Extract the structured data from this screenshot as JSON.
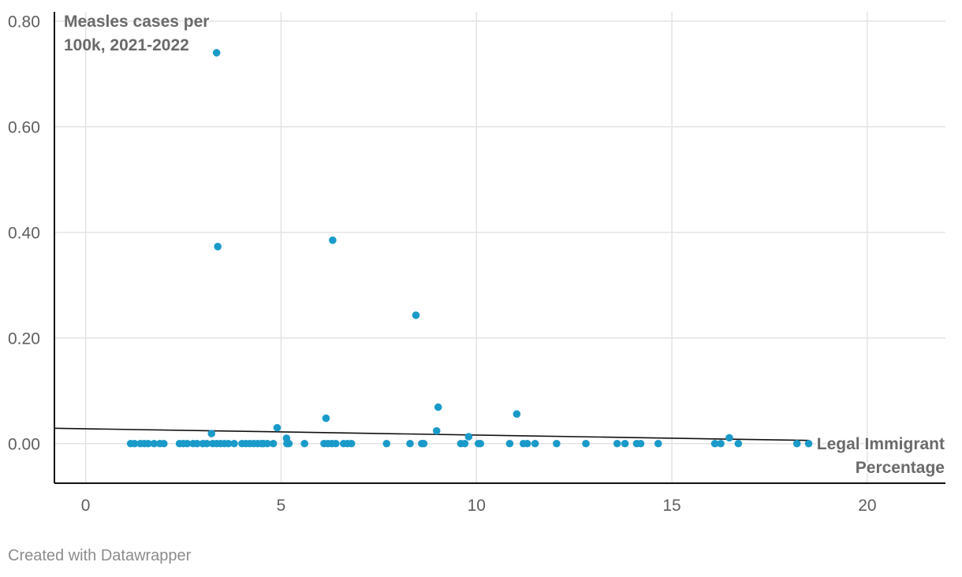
{
  "chart_data": {
    "type": "scatter",
    "ylabel_lines": [
      "Measles cases per",
      "100k, 2021-2022"
    ],
    "xlabel_lines": [
      "Legal Immigrant",
      "Percentage"
    ],
    "xlim": [
      -0.8,
      22
    ],
    "ylim": [
      -0.075,
      0.81
    ],
    "x_ticks": [
      0,
      5,
      10,
      15,
      20
    ],
    "x_tick_labels": [
      "0",
      "5",
      "10",
      "15",
      "20"
    ],
    "y_ticks": [
      0.0,
      0.2,
      0.4,
      0.6,
      0.8
    ],
    "y_tick_labels": [
      "0.00",
      "0.20",
      "0.40",
      "0.60",
      "0.80"
    ],
    "grid": true,
    "point_color": "#1a9ac9",
    "trendline": {
      "x": [
        -0.8,
        18.5
      ],
      "y": [
        0.029,
        0.006
      ],
      "color": "#111111"
    },
    "points": [
      {
        "x": 3.35,
        "y": 0.74
      },
      {
        "x": 3.38,
        "y": 0.373
      },
      {
        "x": 6.32,
        "y": 0.385
      },
      {
        "x": 8.45,
        "y": 0.243
      },
      {
        "x": 9.02,
        "y": 0.069
      },
      {
        "x": 11.03,
        "y": 0.056
      },
      {
        "x": 6.15,
        "y": 0.048
      },
      {
        "x": 4.9,
        "y": 0.03
      },
      {
        "x": 3.22,
        "y": 0.019
      },
      {
        "x": 8.98,
        "y": 0.024
      },
      {
        "x": 9.8,
        "y": 0.013
      },
      {
        "x": 5.14,
        "y": 0.01
      },
      {
        "x": 16.47,
        "y": 0.011
      },
      {
        "x": 1.15,
        "y": 0
      },
      {
        "x": 1.25,
        "y": 0
      },
      {
        "x": 1.4,
        "y": 0
      },
      {
        "x": 1.5,
        "y": 0
      },
      {
        "x": 1.6,
        "y": 0
      },
      {
        "x": 1.75,
        "y": 0
      },
      {
        "x": 1.9,
        "y": 0
      },
      {
        "x": 2.0,
        "y": 0
      },
      {
        "x": 2.4,
        "y": 0
      },
      {
        "x": 2.5,
        "y": 0
      },
      {
        "x": 2.6,
        "y": 0
      },
      {
        "x": 2.75,
        "y": 0
      },
      {
        "x": 2.85,
        "y": 0
      },
      {
        "x": 3.0,
        "y": 0
      },
      {
        "x": 3.1,
        "y": 0
      },
      {
        "x": 3.25,
        "y": 0
      },
      {
        "x": 3.35,
        "y": 0
      },
      {
        "x": 3.45,
        "y": 0
      },
      {
        "x": 3.55,
        "y": 0
      },
      {
        "x": 3.65,
        "y": 0
      },
      {
        "x": 3.8,
        "y": 0
      },
      {
        "x": 4.0,
        "y": 0
      },
      {
        "x": 4.1,
        "y": 0
      },
      {
        "x": 4.2,
        "y": 0
      },
      {
        "x": 4.3,
        "y": 0
      },
      {
        "x": 4.4,
        "y": 0
      },
      {
        "x": 4.5,
        "y": 0
      },
      {
        "x": 4.55,
        "y": 0
      },
      {
        "x": 4.65,
        "y": 0
      },
      {
        "x": 4.8,
        "y": 0
      },
      {
        "x": 5.15,
        "y": 0
      },
      {
        "x": 5.2,
        "y": 0
      },
      {
        "x": 5.6,
        "y": 0
      },
      {
        "x": 6.1,
        "y": 0
      },
      {
        "x": 6.2,
        "y": 0
      },
      {
        "x": 6.3,
        "y": 0
      },
      {
        "x": 6.4,
        "y": 0
      },
      {
        "x": 6.6,
        "y": 0
      },
      {
        "x": 6.7,
        "y": 0
      },
      {
        "x": 6.8,
        "y": 0
      },
      {
        "x": 7.7,
        "y": 0
      },
      {
        "x": 8.3,
        "y": 0
      },
      {
        "x": 8.6,
        "y": 0
      },
      {
        "x": 8.65,
        "y": 0
      },
      {
        "x": 9.6,
        "y": 0
      },
      {
        "x": 9.7,
        "y": 0
      },
      {
        "x": 10.05,
        "y": 0
      },
      {
        "x": 10.1,
        "y": 0
      },
      {
        "x": 10.85,
        "y": 0
      },
      {
        "x": 11.2,
        "y": 0
      },
      {
        "x": 11.3,
        "y": 0
      },
      {
        "x": 11.5,
        "y": 0
      },
      {
        "x": 12.05,
        "y": 0
      },
      {
        "x": 12.8,
        "y": 0
      },
      {
        "x": 13.6,
        "y": 0
      },
      {
        "x": 13.8,
        "y": 0
      },
      {
        "x": 14.1,
        "y": 0
      },
      {
        "x": 14.2,
        "y": 0
      },
      {
        "x": 14.65,
        "y": 0
      },
      {
        "x": 16.1,
        "y": 0
      },
      {
        "x": 16.25,
        "y": 0
      },
      {
        "x": 16.7,
        "y": 0
      },
      {
        "x": 18.2,
        "y": 0
      },
      {
        "x": 18.5,
        "y": 0
      }
    ]
  },
  "footer": {
    "credit": "Created with Datawrapper"
  }
}
